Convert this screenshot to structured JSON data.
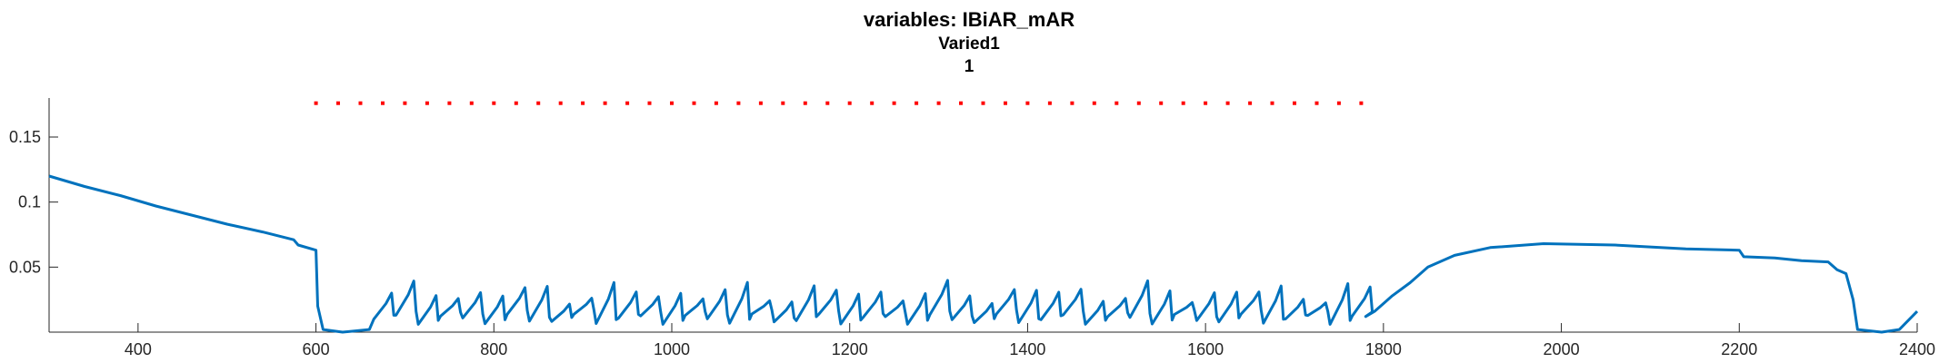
{
  "chart_data": {
    "type": "line",
    "title": "variables: IBiAR_mAR",
    "subtitle_lines": [
      "Varied1",
      "1"
    ],
    "xlabel": "",
    "ylabel": "",
    "xlim": [
      300,
      2400
    ],
    "ylim": [
      0,
      0.18
    ],
    "xticks": [
      400,
      600,
      800,
      1000,
      1200,
      1400,
      1600,
      1800,
      2000,
      2200,
      2400
    ],
    "yticks": [
      0.05,
      0.1,
      0.15
    ],
    "ytick_labels": [
      "0.05",
      "0.1",
      "0.15"
    ],
    "grid": false,
    "series": [
      {
        "color": "#0072BD",
        "description_points": [
          [
            300,
            0.12
          ],
          [
            340,
            0.112
          ],
          [
            380,
            0.105
          ],
          [
            420,
            0.097
          ],
          [
            460,
            0.09
          ],
          [
            500,
            0.083
          ],
          [
            540,
            0.077
          ],
          [
            575,
            0.071
          ],
          [
            580,
            0.067
          ],
          [
            600,
            0.063
          ],
          [
            602,
            0.02
          ],
          [
            608,
            0.002
          ],
          [
            630,
            0.0
          ],
          [
            660,
            0.002
          ]
        ],
        "oscillation": {
          "x_start": 665,
          "x_end": 1780,
          "period": 25,
          "low": 0.01,
          "high_range": [
            0.02,
            0.04
          ]
        },
        "tail_points": [
          [
            1780,
            0.012
          ],
          [
            1790,
            0.016
          ],
          [
            1810,
            0.028
          ],
          [
            1830,
            0.038
          ],
          [
            1850,
            0.05
          ],
          [
            1880,
            0.059
          ],
          [
            1920,
            0.065
          ],
          [
            1980,
            0.068
          ],
          [
            2060,
            0.067
          ],
          [
            2140,
            0.064
          ],
          [
            2200,
            0.063
          ],
          [
            2205,
            0.058
          ],
          [
            2240,
            0.057
          ],
          [
            2270,
            0.055
          ],
          [
            2300,
            0.054
          ],
          [
            2310,
            0.048
          ],
          [
            2320,
            0.045
          ],
          [
            2328,
            0.025
          ],
          [
            2333,
            0.002
          ],
          [
            2360,
            0.0
          ],
          [
            2380,
            0.002
          ],
          [
            2400,
            0.016
          ]
        ]
      }
    ],
    "marker_series": {
      "color": "#FF0000",
      "y": 0.176,
      "x_start": 600,
      "x_end": 1780,
      "step": 25
    }
  }
}
